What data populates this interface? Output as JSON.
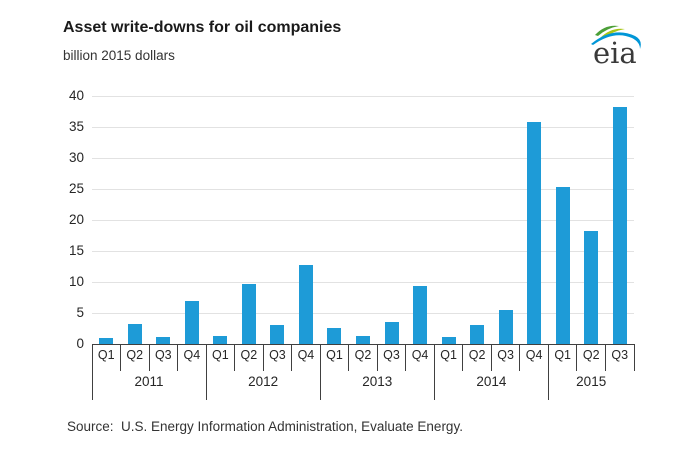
{
  "header": {
    "title": "Asset write-downs for oil companies",
    "subtitle": "billion 2015 dollars"
  },
  "logo": {
    "text": "eia"
  },
  "source": "Source:  U.S. Energy Information Administration, Evaluate Energy.",
  "colors": {
    "bar": "#1e9bd7",
    "gridline": "#e2e2e2",
    "axis": "#404040",
    "logo_green": "#4c9f38",
    "logo_lime": "#a8c617",
    "logo_blue": "#0096d7"
  },
  "chart_data": {
    "type": "bar",
    "title": "Asset write-downs for oil companies",
    "xlabel": "",
    "ylabel": "billion 2015 dollars",
    "ylim": [
      0,
      40
    ],
    "yticks": [
      0,
      5,
      10,
      15,
      20,
      25,
      30,
      35,
      40
    ],
    "grid": true,
    "legend": "none",
    "bar_color": "#1e9bd7",
    "groups": [
      {
        "year": "2011",
        "quarters": [
          "Q1",
          "Q2",
          "Q3",
          "Q4"
        ],
        "values": [
          0.9,
          3.2,
          1.2,
          6.9
        ]
      },
      {
        "year": "2012",
        "quarters": [
          "Q1",
          "Q2",
          "Q3",
          "Q4"
        ],
        "values": [
          1.3,
          9.6,
          3.0,
          12.7
        ]
      },
      {
        "year": "2013",
        "quarters": [
          "Q1",
          "Q2",
          "Q3",
          "Q4"
        ],
        "values": [
          2.6,
          1.3,
          3.6,
          9.3
        ]
      },
      {
        "year": "2014",
        "quarters": [
          "Q1",
          "Q2",
          "Q3",
          "Q4"
        ],
        "values": [
          1.2,
          3.0,
          5.5,
          35.8
        ]
      },
      {
        "year": "2015",
        "quarters": [
          "Q1",
          "Q2",
          "Q3"
        ],
        "values": [
          25.4,
          18.2,
          38.2
        ]
      }
    ]
  }
}
